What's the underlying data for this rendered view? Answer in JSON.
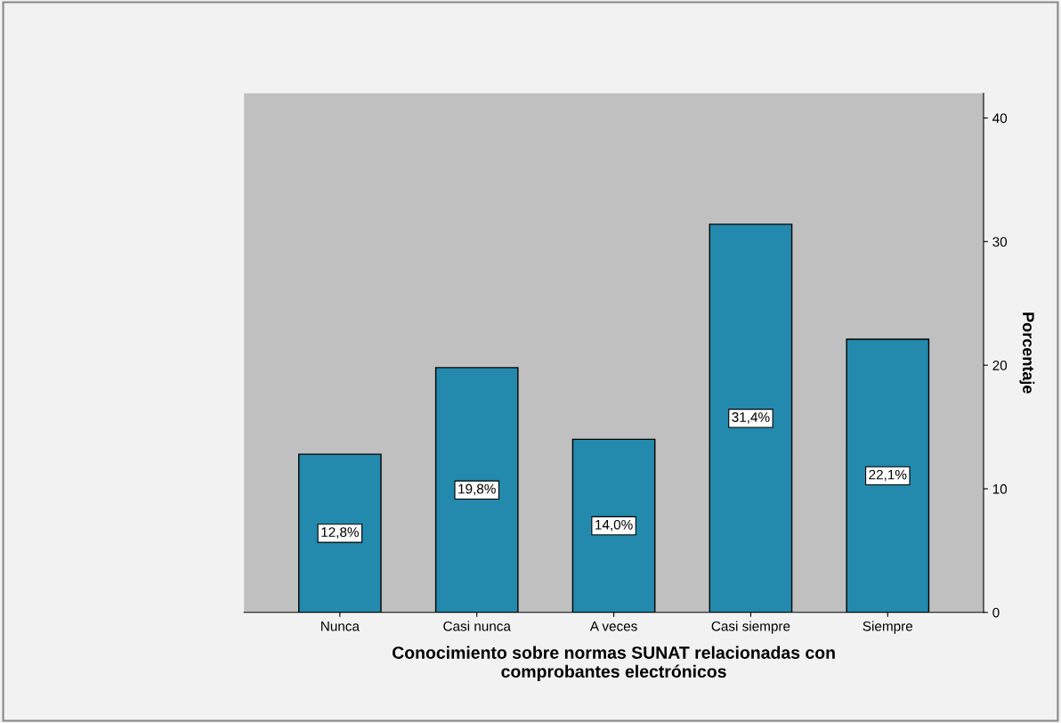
{
  "chart_data": {
    "type": "bar",
    "xlabel": "Conocimiento sobre normas SUNAT relacionadas con\ncomprobantes electrónicos",
    "ylabel": "Porcentaje",
    "categories": [
      "Nunca",
      "Casi nunca",
      "A veces",
      "Casi siempre",
      "Siempre"
    ],
    "values": [
      12.8,
      19.8,
      14.0,
      31.4,
      22.1
    ],
    "value_labels": [
      "12,8%",
      "19,8%",
      "14,0%",
      "31,4%",
      "22,1%"
    ],
    "color": "#2389ad",
    "ylim": [
      0,
      42
    ],
    "yticks": [
      0,
      10,
      20,
      30,
      40
    ],
    "grid": false
  }
}
